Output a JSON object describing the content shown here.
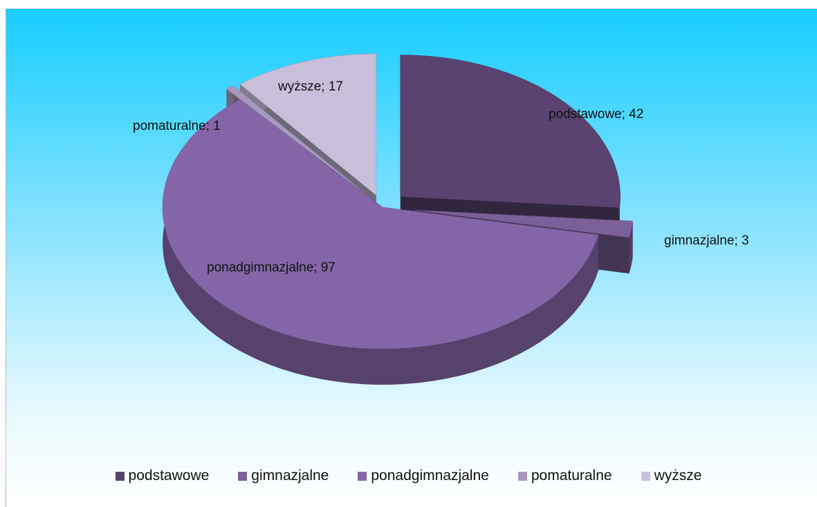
{
  "chart_data": {
    "type": "pie",
    "categories": [
      "podstawowe",
      "gimnazjalne",
      "ponadgimnazjalne",
      "pomaturalne",
      "wyższe"
    ],
    "values": [
      42,
      3,
      97,
      1,
      17
    ],
    "value_labels": [
      "podstawowe; 42",
      "gimnazjalne; 3",
      "ponadgimnazjalne; 97",
      "pomaturalne; 1",
      "wyższe; 17"
    ],
    "colors": [
      "#5a4370",
      "#7a5f98",
      "#8466a8",
      "#a898c0",
      "#c8bfdb"
    ],
    "legend": "bottom"
  }
}
